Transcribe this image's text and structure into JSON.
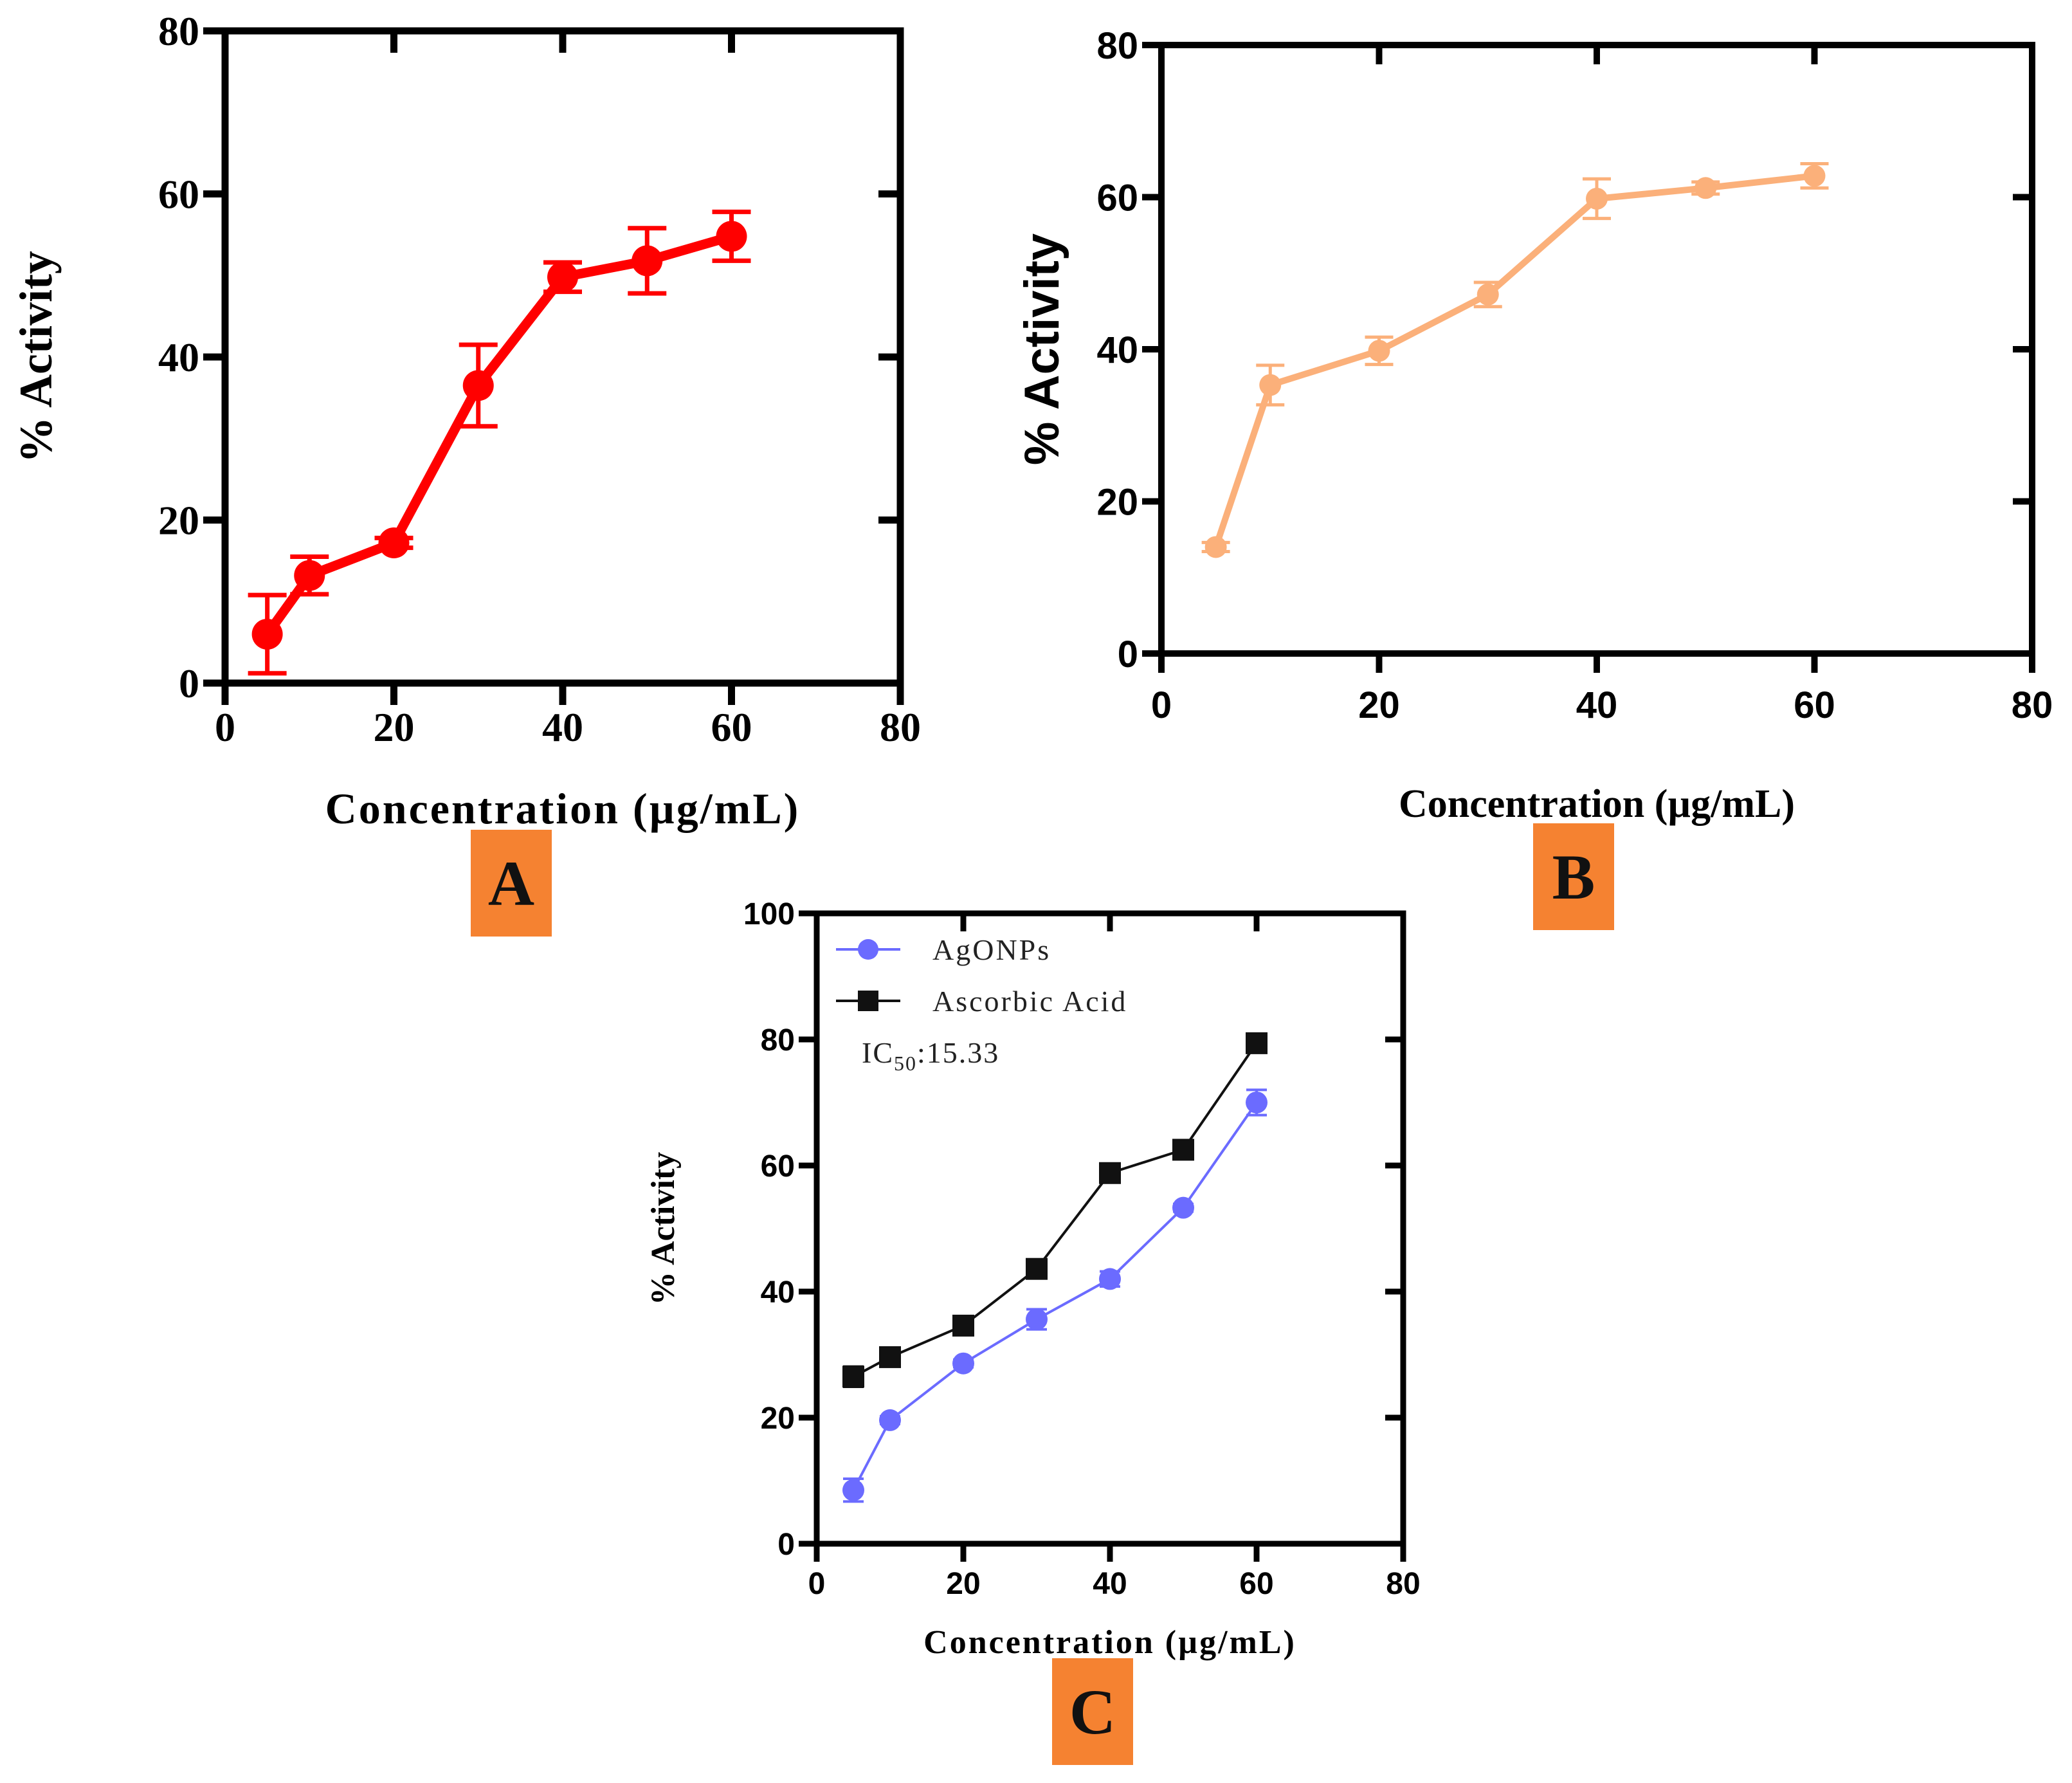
{
  "chart_data": [
    {
      "panel": "A",
      "type": "line",
      "title": "",
      "xlabel": "Concentration (µg/mL)",
      "ylabel": "% Activity",
      "xlim": [
        0,
        80
      ],
      "ylim": [
        0,
        80
      ],
      "xticks": [
        0,
        20,
        40,
        60,
        80
      ],
      "yticks": [
        0,
        20,
        40,
        60,
        80
      ],
      "grid": false,
      "series": [
        {
          "name": "",
          "color": "#ff0000",
          "marker": "circle",
          "x": [
            5,
            10,
            20,
            30,
            40,
            50,
            60
          ],
          "values": [
            6,
            13.2,
            17.2,
            36.5,
            49.8,
            51.8,
            54.8
          ],
          "errors": [
            4.8,
            2.3,
            0.6,
            5,
            1.8,
            4,
            3
          ]
        }
      ]
    },
    {
      "panel": "B",
      "type": "line",
      "title": "",
      "xlabel": "Concentration (µg/mL)",
      "ylabel": "% Activity",
      "xlim": [
        0,
        80
      ],
      "ylim": [
        0,
        80
      ],
      "xticks": [
        0,
        20,
        40,
        60,
        80
      ],
      "yticks": [
        0,
        20,
        40,
        60,
        80
      ],
      "grid": false,
      "series": [
        {
          "name": "",
          "color": "#fbb07a",
          "marker": "circle",
          "x": [
            5,
            10,
            20,
            30,
            40,
            50,
            60
          ],
          "values": [
            14,
            35.3,
            39.8,
            47.2,
            59.8,
            61.2,
            62.8
          ],
          "errors": [
            0.6,
            2.6,
            1.8,
            1.6,
            2.6,
            0.8,
            1.6
          ]
        }
      ]
    },
    {
      "panel": "C",
      "type": "line",
      "title": "",
      "xlabel": "Concentration (µg/mL)",
      "ylabel": "% Activity",
      "xlim": [
        0,
        80
      ],
      "ylim": [
        0,
        100
      ],
      "xticks": [
        0,
        20,
        40,
        60,
        80
      ],
      "yticks": [
        0,
        20,
        40,
        60,
        80,
        100
      ],
      "grid": false,
      "legend": "top-left",
      "annotation": "IC50:15.33",
      "series": [
        {
          "name": "AgONPs",
          "color": "#6b6bff",
          "marker": "circle",
          "x": [
            5,
            10,
            20,
            30,
            40,
            50,
            60
          ],
          "values": [
            8.5,
            19.6,
            28.6,
            35.6,
            42,
            53.3,
            70
          ],
          "errors": [
            1.8,
            0.6,
            0.6,
            1.6,
            1.2,
            0.6,
            2
          ]
        },
        {
          "name": "Ascorbic Acid",
          "color": "#111111",
          "marker": "square",
          "x": [
            5,
            10,
            20,
            30,
            40,
            50,
            60
          ],
          "values": [
            26.5,
            29.6,
            34.6,
            43.6,
            58.8,
            62.5,
            79.4
          ],
          "errors": [
            1.6,
            0.6,
            0.6,
            0.6,
            0.6,
            0.6,
            0.6
          ]
        }
      ]
    }
  ],
  "panel_labels": {
    "a": "A",
    "b": "B",
    "c": "C"
  },
  "badge_color": "#f58231"
}
